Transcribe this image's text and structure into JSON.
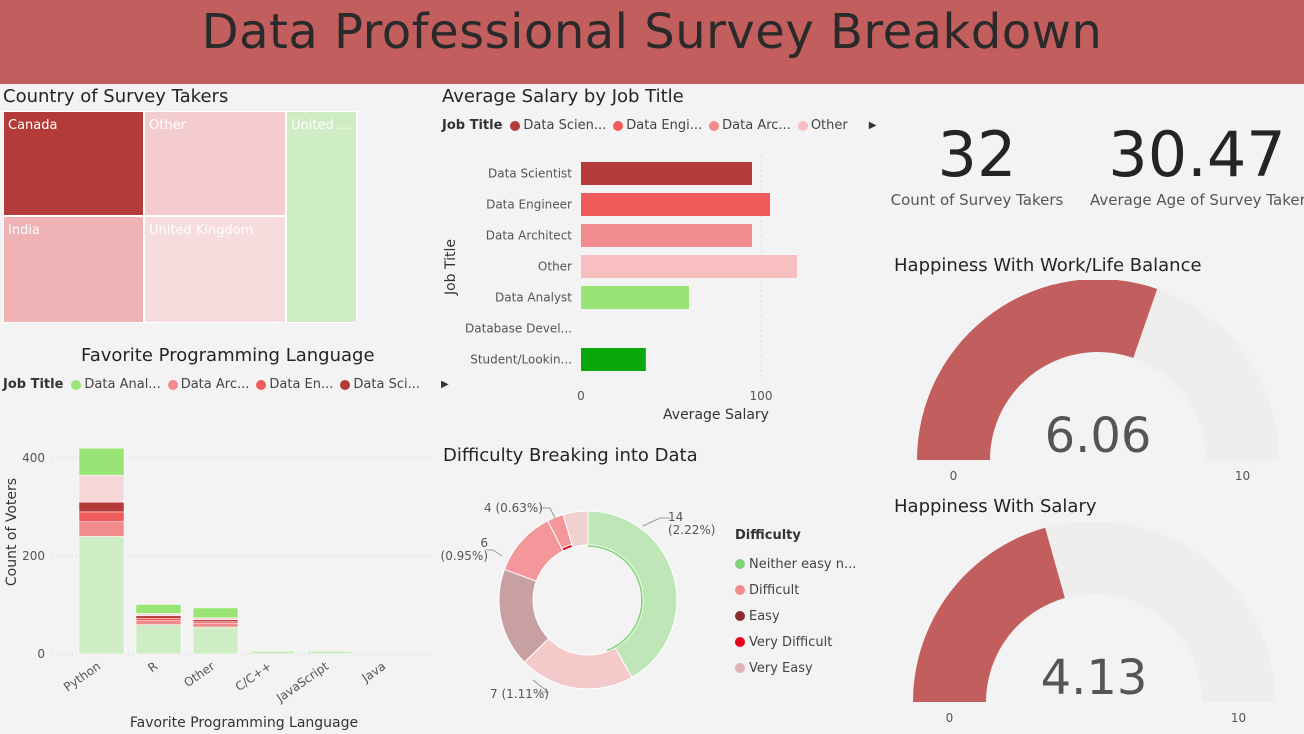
{
  "header": {
    "title": "Data Professional Survey Breakdown",
    "color": "#c25e5e"
  },
  "treemap": {
    "title": "Country of Survey Takers",
    "tiles": [
      {
        "label": "Canada",
        "color": "#b53a3a"
      },
      {
        "label": "Other",
        "color": "#f4cccd"
      },
      {
        "label": "United ...",
        "color": "#cfedc4"
      },
      {
        "label": "India",
        "color": "#efb3b5"
      },
      {
        "label": "United Kingdom",
        "color": "#f6dcdd"
      }
    ]
  },
  "salary_chart": {
    "title": "Average Salary by Job Title",
    "legend_title": "Job Title",
    "legend": [
      {
        "label": "Data Scien...",
        "color": "#b53a3a"
      },
      {
        "label": "Data Engi...",
        "color": "#ef5a5a"
      },
      {
        "label": "Data Arc...",
        "color": "#f28b8e"
      },
      {
        "label": "Other",
        "color": "#f8bfc0"
      }
    ]
  },
  "language_chart": {
    "title": "Favorite Programming Language",
    "legend_title": "Job Title",
    "legend": [
      {
        "label": "Data Anal...",
        "color": "#98e475"
      },
      {
        "label": "Data Arc...",
        "color": "#f28b8e"
      },
      {
        "label": "Data En...",
        "color": "#ef5a5a"
      },
      {
        "label": "Data Sci...",
        "color": "#b53a3a"
      }
    ]
  },
  "donut": {
    "title": "Difficulty Breaking into Data",
    "legend_title": "Difficulty",
    "legend": [
      {
        "label": "Neither easy n...",
        "color": "#7fd47a"
      },
      {
        "label": "Difficult",
        "color": "#f28b8e"
      },
      {
        "label": "Easy",
        "color": "#8a2f2f"
      },
      {
        "label": "Very Difficult",
        "color": "#e8001c"
      },
      {
        "label": "Very Easy",
        "color": "#e0b2b4"
      }
    ],
    "labels": [
      "14",
      "(2.22%)",
      "7 (1.11%)",
      "6",
      "(0.95%)",
      "4 (0.63%)"
    ]
  },
  "kpis": [
    {
      "value": "32",
      "label": "Count of Survey Takers"
    },
    {
      "value": "30.47",
      "label": "Average Age of Survey Taker"
    }
  ],
  "gauges": [
    {
      "title": "Happiness With Work/Life Balance",
      "value_text": "6.06",
      "min_label": "0",
      "max_label": "10"
    },
    {
      "title": "Happiness With Salary",
      "value_text": "4.13",
      "min_label": "0",
      "max_label": "10"
    }
  ],
  "chart_data": [
    {
      "type": "treemap",
      "title": "Country of Survey Takers",
      "categories": [
        "Canada",
        "Other",
        "United ...",
        "India",
        "United Kingdom"
      ]
    },
    {
      "type": "bar",
      "orientation": "horizontal",
      "title": "Average Salary by Job Title",
      "categories": [
        "Data Scientist",
        "Data Engineer",
        "Data Architect",
        "Other",
        "Data Analyst",
        "Database Devel...",
        "Student/Lookin..."
      ],
      "values": [
        95,
        105,
        95,
        120,
        60,
        0,
        36
      ],
      "colors": [
        "#b53a3a",
        "#ef5a5a",
        "#f28b8e",
        "#f8bfc0",
        "#98e475",
        "#cccccc",
        "#0aa80a"
      ],
      "xlabel": "Average Salary",
      "ylabel": "Job Title",
      "xticks": [
        "0",
        "100"
      ],
      "xlim": [
        0,
        130
      ]
    },
    {
      "type": "bar",
      "stacked": true,
      "title": "Favorite Programming Language",
      "categories": [
        "Python",
        "R",
        "Other",
        "C/C++",
        "JavaScript",
        "Java"
      ],
      "series": [
        {
          "name": "Data Anal...",
          "color": "#cfedc4",
          "values": [
            240,
            60,
            55,
            6,
            6,
            0
          ]
        },
        {
          "name": "Data Arc...",
          "color": "#f28b8e",
          "values": [
            30,
            8,
            8,
            0,
            0,
            0
          ]
        },
        {
          "name": "Data En...",
          "color": "#ef5a5a",
          "values": [
            20,
            5,
            3,
            0,
            0,
            0
          ]
        },
        {
          "name": "Data Sci...",
          "color": "#b53a3a",
          "values": [
            20,
            5,
            4,
            0,
            0,
            0
          ]
        },
        {
          "name": "",
          "color": "#f6d7d8",
          "values": [
            55,
            5,
            4,
            0,
            2,
            0
          ]
        },
        {
          "name": "",
          "color": "#98e475",
          "values": [
            55,
            18,
            20,
            0,
            0,
            0
          ]
        }
      ],
      "xlabel": "Favorite Programming Language",
      "ylabel": "Count of Voters",
      "yticks": [
        "0",
        "200",
        "400"
      ],
      "ylim": [
        0,
        430
      ]
    },
    {
      "type": "pie",
      "donut": true,
      "title": "Difficulty Breaking into Data",
      "categories": [
        "Neither easy n...",
        "Very Easy",
        "Easy",
        "Difficult",
        "Very Difficult"
      ],
      "values": [
        14,
        7,
        6,
        4,
        1
      ]
    },
    {
      "type": "gauge",
      "title": "Happiness With Work/Life Balance",
      "value": 6.06,
      "min": 0,
      "max": 10
    },
    {
      "type": "gauge",
      "title": "Happiness With Salary",
      "value": 4.13,
      "min": 0,
      "max": 10
    }
  ]
}
